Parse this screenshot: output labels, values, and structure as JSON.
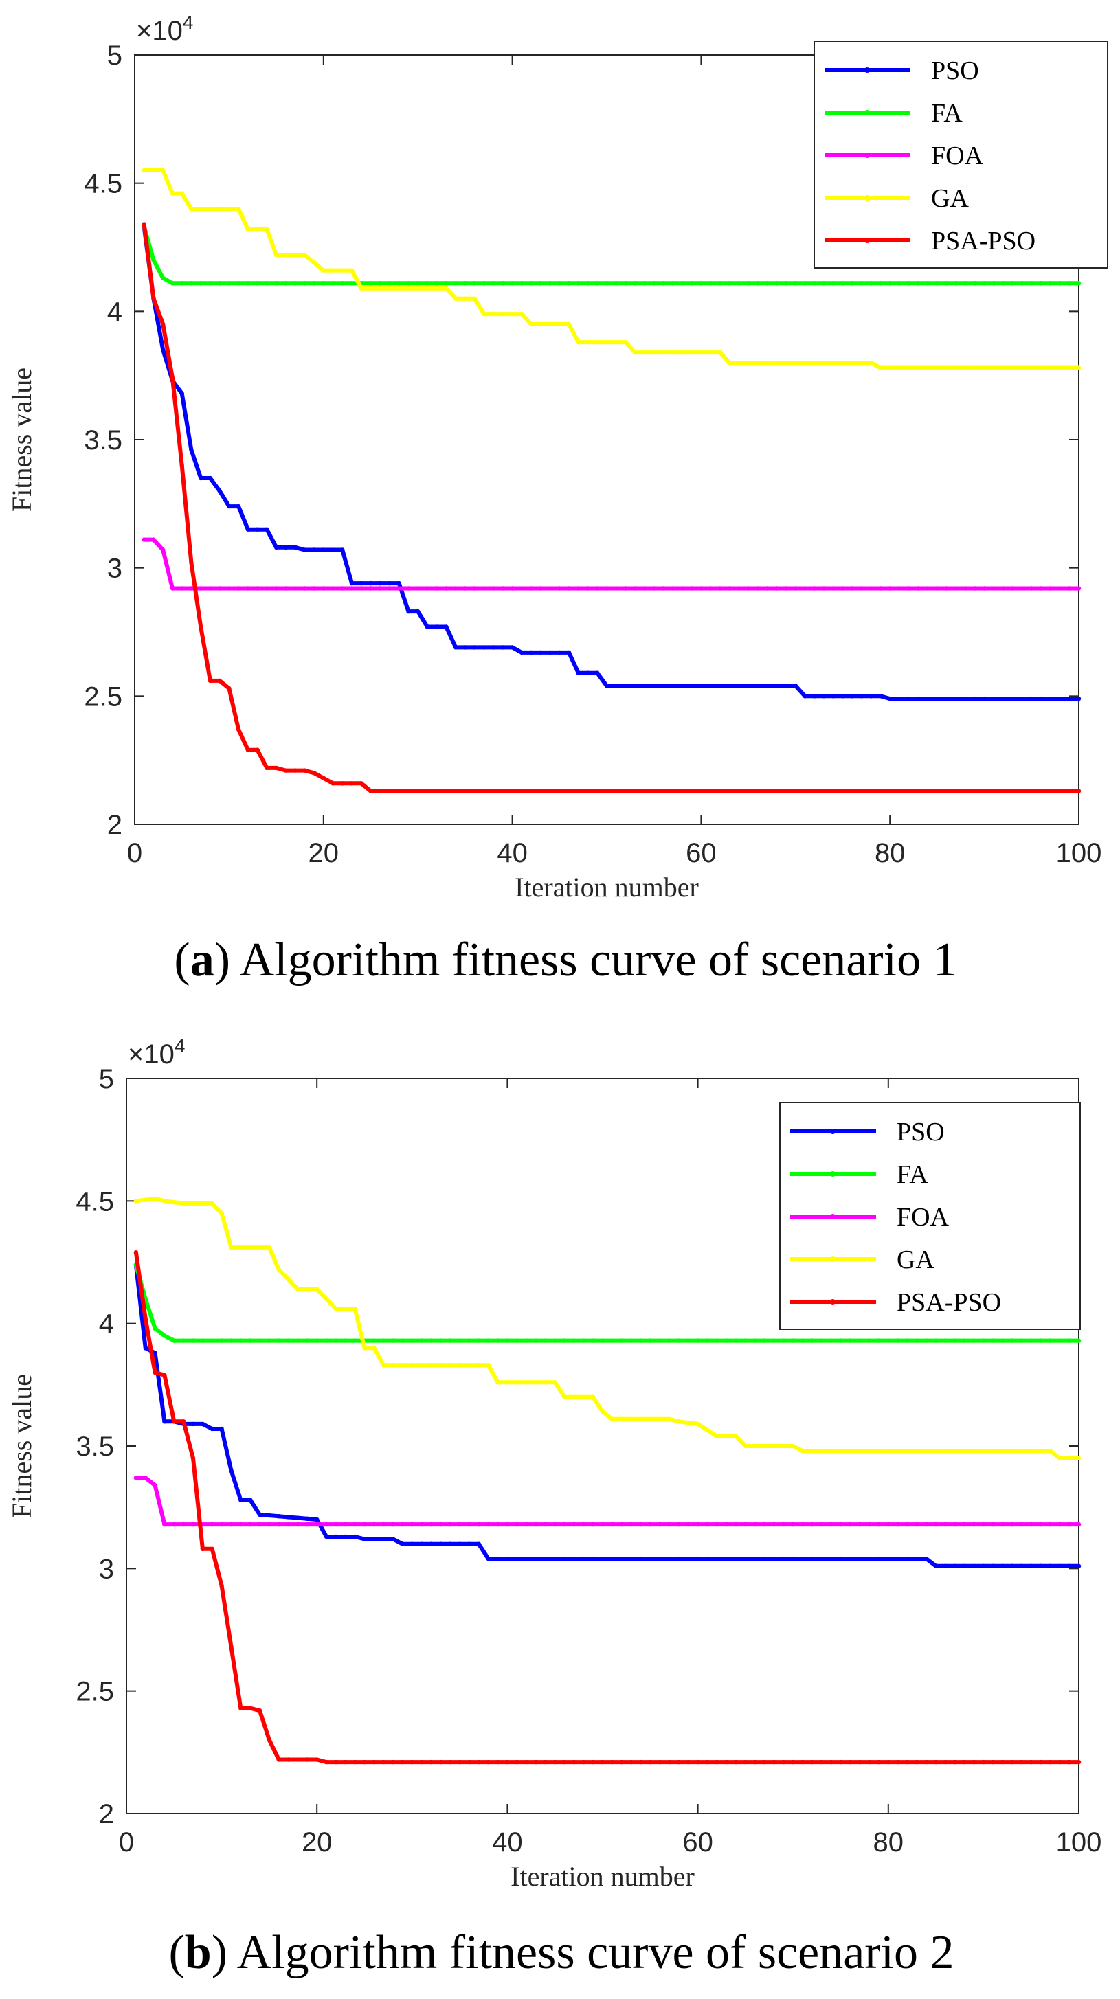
{
  "chart_data": [
    {
      "type": "line",
      "caption_letter": "a",
      "caption_open": "(",
      "caption_close": ")",
      "caption_text": " Algorithm fitness curve of scenario 1",
      "xlabel": "Iteration number",
      "ylabel": "Fitness value",
      "y_multiplier_label": "×10",
      "y_multiplier_exp": "4",
      "xlim": [
        0,
        100
      ],
      "ylim": [
        2,
        5
      ],
      "xticks": [
        0,
        20,
        40,
        60,
        80,
        100
      ],
      "yticks": [
        2,
        2.5,
        3,
        3.5,
        4,
        4.5,
        5
      ],
      "legend_position": "top-right",
      "series": [
        {
          "name": "PSO",
          "color": "#0000FF",
          "points": [
            [
              1,
              4.33
            ],
            [
              2,
              4.05
            ],
            [
              3,
              3.85
            ],
            [
              4,
              3.73
            ],
            [
              5,
              3.68
            ],
            [
              6,
              3.46
            ],
            [
              7,
              3.35
            ],
            [
              8,
              3.35
            ],
            [
              9,
              3.3
            ],
            [
              10,
              3.24
            ],
            [
              11,
              3.24
            ],
            [
              12,
              3.15
            ],
            [
              14,
              3.15
            ],
            [
              15,
              3.08
            ],
            [
              17,
              3.08
            ],
            [
              18,
              3.07
            ],
            [
              22,
              3.07
            ],
            [
              23,
              2.94
            ],
            [
              28,
              2.94
            ],
            [
              29,
              2.83
            ],
            [
              30,
              2.83
            ],
            [
              31,
              2.77
            ],
            [
              33,
              2.77
            ],
            [
              34,
              2.69
            ],
            [
              40,
              2.69
            ],
            [
              41,
              2.67
            ],
            [
              46,
              2.67
            ],
            [
              47,
              2.59
            ],
            [
              49,
              2.59
            ],
            [
              50,
              2.54
            ],
            [
              70,
              2.54
            ],
            [
              71,
              2.5
            ],
            [
              79,
              2.5
            ],
            [
              80,
              2.49
            ],
            [
              100,
              2.49
            ]
          ]
        },
        {
          "name": "FA",
          "color": "#00FF00",
          "points": [
            [
              1,
              4.33
            ],
            [
              2,
              4.2
            ],
            [
              3,
              4.13
            ],
            [
              4,
              4.11
            ],
            [
              5,
              4.11
            ],
            [
              100,
              4.11
            ]
          ]
        },
        {
          "name": "FOA",
          "color": "#FF00FF",
          "points": [
            [
              1,
              3.11
            ],
            [
              2,
              3.11
            ],
            [
              3,
              3.07
            ],
            [
              4,
              2.92
            ],
            [
              100,
              2.92
            ]
          ]
        },
        {
          "name": "GA",
          "color": "#FFFF00",
          "points": [
            [
              1,
              4.55
            ],
            [
              3,
              4.55
            ],
            [
              4,
              4.46
            ],
            [
              5,
              4.46
            ],
            [
              6,
              4.4
            ],
            [
              11,
              4.4
            ],
            [
              12,
              4.32
            ],
            [
              14,
              4.32
            ],
            [
              15,
              4.22
            ],
            [
              18,
              4.22
            ],
            [
              19,
              4.19
            ],
            [
              20,
              4.16
            ],
            [
              23,
              4.16
            ],
            [
              24,
              4.09
            ],
            [
              33,
              4.09
            ],
            [
              34,
              4.05
            ],
            [
              36,
              4.05
            ],
            [
              37,
              3.99
            ],
            [
              41,
              3.99
            ],
            [
              42,
              3.95
            ],
            [
              46,
              3.95
            ],
            [
              47,
              3.88
            ],
            [
              52,
              3.88
            ],
            [
              53,
              3.84
            ],
            [
              58,
              3.84
            ],
            [
              59,
              3.84
            ],
            [
              62,
              3.84
            ],
            [
              63,
              3.8
            ],
            [
              78,
              3.8
            ],
            [
              79,
              3.78
            ],
            [
              100,
              3.78
            ]
          ]
        },
        {
          "name": "PSA-PSO",
          "color": "#FF0000",
          "points": [
            [
              1,
              4.34
            ],
            [
              2,
              4.05
            ],
            [
              3,
              3.95
            ],
            [
              4,
              3.74
            ],
            [
              5,
              3.4
            ],
            [
              6,
              3.02
            ],
            [
              7,
              2.77
            ],
            [
              8,
              2.56
            ],
            [
              9,
              2.56
            ],
            [
              10,
              2.53
            ],
            [
              11,
              2.37
            ],
            [
              12,
              2.29
            ],
            [
              13,
              2.29
            ],
            [
              14,
              2.22
            ],
            [
              15,
              2.22
            ],
            [
              16,
              2.21
            ],
            [
              18,
              2.21
            ],
            [
              19,
              2.2
            ],
            [
              20,
              2.18
            ],
            [
              21,
              2.16
            ],
            [
              24,
              2.16
            ],
            [
              25,
              2.13
            ],
            [
              100,
              2.13
            ]
          ]
        }
      ]
    },
    {
      "type": "line",
      "caption_letter": "b",
      "caption_open": "(",
      "caption_close": ")",
      "caption_text": " Algorithm fitness curve of scenario 2",
      "xlabel": "Iteration number",
      "ylabel": "Fitness value",
      "y_multiplier_label": "×10",
      "y_multiplier_exp": "4",
      "xlim": [
        0,
        100
      ],
      "ylim": [
        2,
        5
      ],
      "xticks": [
        0,
        20,
        40,
        60,
        80,
        100
      ],
      "yticks": [
        2,
        2.5,
        3,
        3.5,
        4,
        4.5,
        5
      ],
      "legend_position": "top-right",
      "series": [
        {
          "name": "PSO",
          "color": "#0000FF",
          "points": [
            [
              1,
              4.24
            ],
            [
              2,
              3.9
            ],
            [
              3,
              3.88
            ],
            [
              4,
              3.6
            ],
            [
              5,
              3.6
            ],
            [
              6,
              3.59
            ],
            [
              8,
              3.59
            ],
            [
              9,
              3.57
            ],
            [
              10,
              3.57
            ],
            [
              11,
              3.4
            ],
            [
              12,
              3.28
            ],
            [
              13,
              3.28
            ],
            [
              14,
              3.22
            ],
            [
              20,
              3.2
            ],
            [
              21,
              3.13
            ],
            [
              24,
              3.13
            ],
            [
              25,
              3.12
            ],
            [
              28,
              3.12
            ],
            [
              29,
              3.1
            ],
            [
              37,
              3.1
            ],
            [
              38,
              3.04
            ],
            [
              84,
              3.04
            ],
            [
              85,
              3.01
            ],
            [
              100,
              3.01
            ]
          ]
        },
        {
          "name": "FA",
          "color": "#00FF00",
          "points": [
            [
              1,
              4.24
            ],
            [
              2,
              4.1
            ],
            [
              3,
              3.98
            ],
            [
              4,
              3.95
            ],
            [
              5,
              3.93
            ],
            [
              100,
              3.93
            ]
          ]
        },
        {
          "name": "FOA",
          "color": "#FF00FF",
          "points": [
            [
              1,
              3.37
            ],
            [
              2,
              3.37
            ],
            [
              3,
              3.34
            ],
            [
              4,
              3.18
            ],
            [
              100,
              3.18
            ]
          ]
        },
        {
          "name": "GA",
          "color": "#FFFF00",
          "points": [
            [
              1,
              4.5
            ],
            [
              3,
              4.51
            ],
            [
              4,
              4.5
            ],
            [
              6,
              4.49
            ],
            [
              9,
              4.49
            ],
            [
              10,
              4.45
            ],
            [
              11,
              4.31
            ],
            [
              15,
              4.31
            ],
            [
              16,
              4.22
            ],
            [
              18,
              4.14
            ],
            [
              20,
              4.14
            ],
            [
              21,
              4.1
            ],
            [
              22,
              4.06
            ],
            [
              24,
              4.06
            ],
            [
              25,
              3.9
            ],
            [
              26,
              3.9
            ],
            [
              27,
              3.83
            ],
            [
              38,
              3.83
            ],
            [
              39,
              3.76
            ],
            [
              45,
              3.76
            ],
            [
              46,
              3.7
            ],
            [
              49,
              3.7
            ],
            [
              50,
              3.64
            ],
            [
              51,
              3.61
            ],
            [
              57,
              3.61
            ],
            [
              58,
              3.6
            ],
            [
              60,
              3.59
            ],
            [
              62,
              3.54
            ],
            [
              64,
              3.54
            ],
            [
              65,
              3.5
            ],
            [
              70,
              3.5
            ],
            [
              71,
              3.48
            ],
            [
              97,
              3.48
            ],
            [
              98,
              3.45
            ],
            [
              100,
              3.45
            ]
          ]
        },
        {
          "name": "PSA-PSO",
          "color": "#FF0000",
          "points": [
            [
              1,
              4.29
            ],
            [
              2,
              4.02
            ],
            [
              3,
              3.8
            ],
            [
              4,
              3.79
            ],
            [
              5,
              3.6
            ],
            [
              6,
              3.6
            ],
            [
              7,
              3.45
            ],
            [
              8,
              3.08
            ],
            [
              9,
              3.08
            ],
            [
              10,
              2.93
            ],
            [
              11,
              2.68
            ],
            [
              12,
              2.43
            ],
            [
              13,
              2.43
            ],
            [
              14,
              2.42
            ],
            [
              15,
              2.3
            ],
            [
              16,
              2.22
            ],
            [
              20,
              2.22
            ],
            [
              21,
              2.21
            ],
            [
              100,
              2.21
            ]
          ]
        }
      ]
    }
  ]
}
